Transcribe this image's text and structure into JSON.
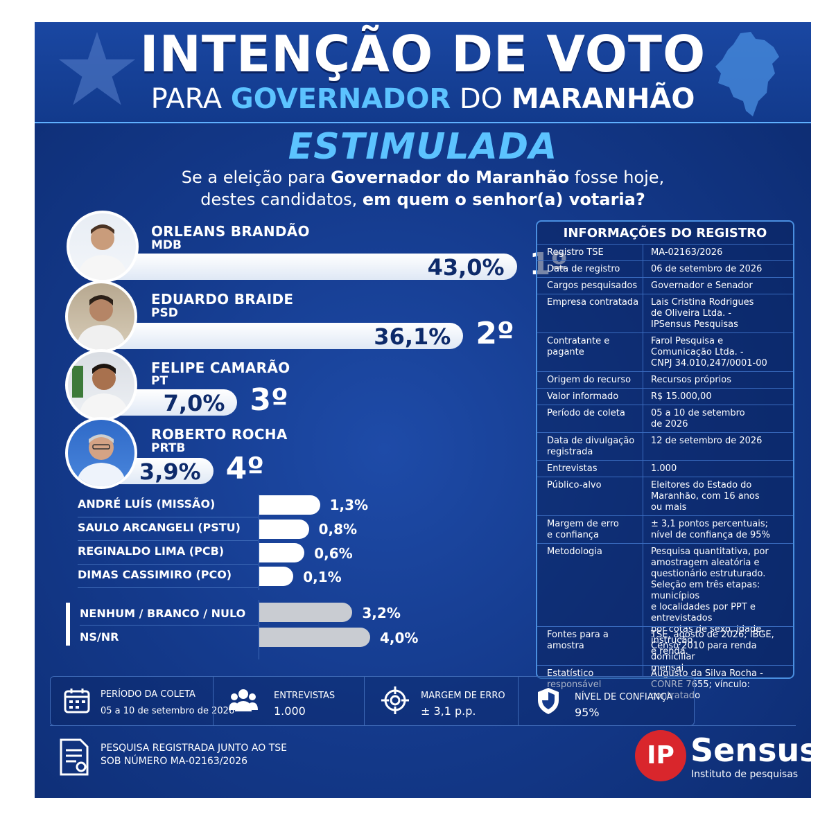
{
  "header": {
    "title": "INTENÇÃO DE VOTO",
    "subtitle_1": "PARA",
    "subtitle_2": "GOVERNADOR",
    "subtitle_3": "DO",
    "subtitle_4": "MARANHÃO"
  },
  "section": {
    "label": "ESTIMULADA",
    "question_1a": "Se a eleição para ",
    "question_1b": "Governador do Maranhão",
    "question_1c": " fosse hoje,",
    "question_2a": "destes candidatos, ",
    "question_2b": "em quem o senhor(a) votaria?"
  },
  "chart_data": {
    "type": "bar",
    "title": "INTENÇÃO DE VOTO PARA GOVERNADOR DO MARANHÃO",
    "subtitle": "ESTIMULADA",
    "unit": "%",
    "main_candidates": [
      {
        "name": "ORLEANS BRANDÃO",
        "party": "MDB",
        "value": 43.0,
        "label": "43,0%",
        "rank": "1º"
      },
      {
        "name": "EDUARDO BRAIDE",
        "party": "PSD",
        "value": 36.1,
        "label": "36,1%",
        "rank": "2º"
      },
      {
        "name": "FELIPE CAMARÃO",
        "party": "PT",
        "value": 7.0,
        "label": "7,0%",
        "rank": "3º"
      },
      {
        "name": "ROBERTO ROCHA",
        "party": "PRTB",
        "value": 3.9,
        "label": "3,9%",
        "rank": "4º"
      }
    ],
    "minor_candidates": [
      {
        "name": "ANDRÉ LUÍS (MISSÃO)",
        "value": 1.3,
        "label": "1,3%"
      },
      {
        "name": "SAULO ARCANGELI (PSTU)",
        "value": 0.8,
        "label": "0,8%"
      },
      {
        "name": "REGINALDO LIMA (PCB)",
        "value": 0.6,
        "label": "0,6%"
      },
      {
        "name": "DIMAS CASSIMIRO (PCO)",
        "value": 0.1,
        "label": "0,1%"
      }
    ],
    "other": [
      {
        "name": "NENHUM / BRANCO / NULO",
        "value": 3.2,
        "label": "3,2%"
      },
      {
        "name": "NS/NR",
        "value": 4.0,
        "label": "4,0%"
      }
    ]
  },
  "info": {
    "title": "INFORMAÇÕES DO REGISTRO",
    "rows": [
      {
        "label": "Registro TSE",
        "value": "MA-02163/2026"
      },
      {
        "label": "Data de registro",
        "value": "06 de setembro de 2026"
      },
      {
        "label": "Cargos pesquisados",
        "value": "Governador e Senador"
      },
      {
        "label": "Empresa contratada",
        "value": "Lais Cristina Rodrigues\nde Oliveira Ltda. -\nIPSensus Pesquisas"
      },
      {
        "label": "Contratante e pagante",
        "value": "Farol Pesquisa e\nComunicação Ltda. -\nCNPJ 34.010,247/0001-00"
      },
      {
        "label": "Origem do recurso",
        "value": "Recursos próprios"
      },
      {
        "label": "Valor informado",
        "value": "R$ 15.000,00"
      },
      {
        "label": "Período de coleta",
        "value": "05 a 10 de setembro\nde 2026"
      },
      {
        "label": "Data de divulgação\nregistrada",
        "value": "12 de setembro de 2026"
      },
      {
        "label": "Entrevistas",
        "value": "1.000"
      },
      {
        "label": "Público-alvo",
        "value": "Eleitores do Estado do\nMaranhão, com 16 anos\nou mais"
      },
      {
        "label": "Margem de erro\ne confiança",
        "value": "± 3,1 pontos percentuais;\nnível de confiança de 95%"
      },
      {
        "label": "Metodologia",
        "value": "Pesquisa quantitativa, por\namostragem aleatória e\nquestionário estruturado.\nSeleção em três etapas: municípios\ne localidades por PPT e entrevistados\npor cotas de sexo, idade, instrução\ne renda."
      },
      {
        "label": "Fontes para a amostra",
        "value": "TSE, agosto de 2026; IBGE,\nCenso 2010 para renda domiciliar\nmensal"
      },
      {
        "label": "Estatístico responsável",
        "value": "Augusto da Silva Rocha -\nCONRE 7655; vínculo: contratado"
      }
    ]
  },
  "stats": {
    "periodo_label": "PERÍODO DA COLETA",
    "periodo_value": "05 a 10 de setembro de 2026",
    "entrevistas_label": "ENTREVISTAS",
    "entrevistas_value": "1.000",
    "margem_label": "MARGEM DE ERRO",
    "margem_value": "± 3,1 p.p.",
    "confianca_label": "NÍVEL DE CONFIANÇA",
    "confianca_value": "95%"
  },
  "registration": {
    "line1": "PESQUISA REGISTRADA JUNTO AO TSE",
    "line2": "SOB NÚMERO MA-02163/2026"
  },
  "logo": {
    "ip": "IP",
    "name": "Sensus",
    "tagline": "Instituto de pesquisas"
  },
  "colors": {
    "background": "#143a8c",
    "accent": "#5cc3ff",
    "logo_red": "#d9262c"
  }
}
